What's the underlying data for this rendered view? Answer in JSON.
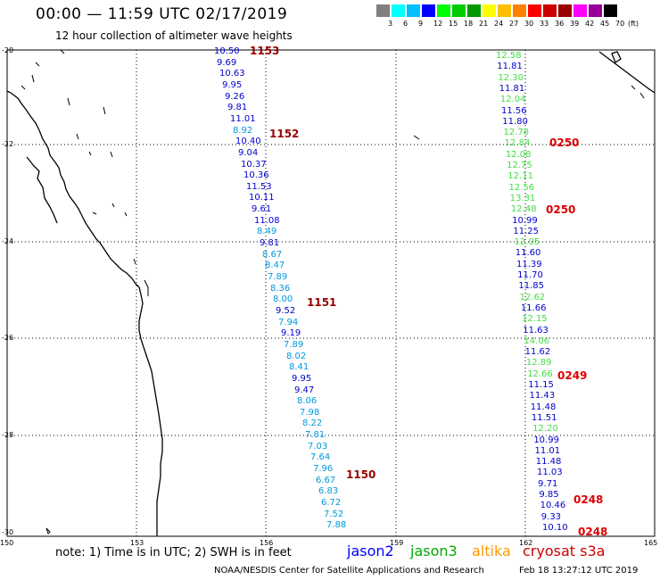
{
  "header": {
    "title": "00:00 — 11:59 UTC 02/17/2019",
    "subtitle": "12 hour collection of altimeter wave heights"
  },
  "colorbar": {
    "unit": "(ft)",
    "labels": [
      "3",
      "6",
      "9",
      "12",
      "15",
      "18",
      "21",
      "24",
      "27",
      "30",
      "33",
      "36",
      "39",
      "42",
      "45",
      "70"
    ],
    "colors": [
      "#808080",
      "#00ffff",
      "#00bfff",
      "#0000ff",
      "#00ff00",
      "#00cc00",
      "#009900",
      "#ffff00",
      "#ffbf00",
      "#ff8000",
      "#ff0000",
      "#cc0000",
      "#990000",
      "#ff00ff",
      "#990099",
      "#000000"
    ]
  },
  "axes": {
    "lat_labels": [
      "-20",
      "-22",
      "-24",
      "-26",
      "-28",
      "-30"
    ],
    "lon_labels": [
      "150",
      "153",
      "156",
      "159",
      "162",
      "165"
    ]
  },
  "sat_colors": {
    "jason2": "#0000ff",
    "jason3": "#00aa00",
    "altika": "#ff9900",
    "cryosat": "#cc0000"
  },
  "track1": [
    {
      "v": "10.50",
      "c": "#0000cc"
    },
    {
      "v": "9.69",
      "c": "#0000cc"
    },
    {
      "v": "10.63",
      "c": "#0000cc"
    },
    {
      "v": "9.95",
      "c": "#0000cc"
    },
    {
      "v": "9.26",
      "c": "#0000cc"
    },
    {
      "v": "9.81",
      "c": "#0000cc"
    },
    {
      "v": "11.01",
      "c": "#0000cc"
    },
    {
      "v": "8.92",
      "c": "#0099dd"
    },
    {
      "v": "10.40",
      "c": "#0000cc"
    },
    {
      "v": "9.04",
      "c": "#0000cc"
    },
    {
      "v": "10.37",
      "c": "#0000cc"
    },
    {
      "v": "10.36",
      "c": "#0000cc"
    },
    {
      "v": "11.53",
      "c": "#0000cc"
    },
    {
      "v": "10.11",
      "c": "#0000cc"
    },
    {
      "v": "9.61",
      "c": "#0000cc"
    },
    {
      "v": "11.08",
      "c": "#0000cc"
    },
    {
      "v": "8.49",
      "c": "#0099dd"
    },
    {
      "v": "9.81",
      "c": "#0000cc"
    },
    {
      "v": "8.67",
      "c": "#0099dd"
    },
    {
      "v": "8.47",
      "c": "#0099dd"
    },
    {
      "v": "7.89",
      "c": "#0099dd"
    },
    {
      "v": "8.36",
      "c": "#0099dd"
    },
    {
      "v": "8.00",
      "c": "#0099dd"
    },
    {
      "v": "9.52",
      "c": "#0000cc"
    },
    {
      "v": "7.94",
      "c": "#0099dd"
    },
    {
      "v": "9.19",
      "c": "#0000cc"
    },
    {
      "v": "7.89",
      "c": "#0099dd"
    },
    {
      "v": "8.02",
      "c": "#0099dd"
    },
    {
      "v": "8.41",
      "c": "#0099dd"
    },
    {
      "v": "9.95",
      "c": "#0000cc"
    },
    {
      "v": "9.47",
      "c": "#0000cc"
    },
    {
      "v": "8.06",
      "c": "#0099dd"
    },
    {
      "v": "7.98",
      "c": "#0099dd"
    },
    {
      "v": "8.22",
      "c": "#0099dd"
    },
    {
      "v": "7.81",
      "c": "#0099dd"
    },
    {
      "v": "7.03",
      "c": "#0099dd"
    },
    {
      "v": "7.64",
      "c": "#0099dd"
    },
    {
      "v": "7.96",
      "c": "#0099dd"
    },
    {
      "v": "6.67",
      "c": "#0099dd"
    },
    {
      "v": "6.83",
      "c": "#0099dd"
    },
    {
      "v": "6.72",
      "c": "#0099dd"
    },
    {
      "v": "7.52",
      "c": "#0099dd"
    },
    {
      "v": "7.88",
      "c": "#0099dd"
    }
  ],
  "track2": [
    {
      "v": "12.58",
      "c": "#44dd44"
    },
    {
      "v": "11.81",
      "c": "#0000cc"
    },
    {
      "v": "12.30",
      "c": "#44dd44"
    },
    {
      "v": "11.81",
      "c": "#0000cc"
    },
    {
      "v": "12.04",
      "c": "#44dd44"
    },
    {
      "v": "11.56",
      "c": "#0000cc"
    },
    {
      "v": "11.80",
      "c": "#0000cc"
    },
    {
      "v": "12.78",
      "c": "#44dd44"
    },
    {
      "v": "12.84",
      "c": "#44dd44"
    },
    {
      "v": "12.08",
      "c": "#44dd44"
    },
    {
      "v": "12.75",
      "c": "#44dd44"
    },
    {
      "v": "12.11",
      "c": "#44dd44"
    },
    {
      "v": "12.56",
      "c": "#44dd44"
    },
    {
      "v": "13.31",
      "c": "#44dd44"
    },
    {
      "v": "12.48",
      "c": "#44dd44"
    },
    {
      "v": "10.99",
      "c": "#0000cc"
    },
    {
      "v": "11.25",
      "c": "#0000cc"
    },
    {
      "v": "12.05",
      "c": "#44dd44"
    },
    {
      "v": "11.60",
      "c": "#0000cc"
    },
    {
      "v": "11.39",
      "c": "#0000cc"
    },
    {
      "v": "11.70",
      "c": "#0000cc"
    },
    {
      "v": "11.85",
      "c": "#0000cc"
    },
    {
      "v": "12.62",
      "c": "#44dd44"
    },
    {
      "v": "11.66",
      "c": "#0000cc"
    },
    {
      "v": "12.15",
      "c": "#44dd44"
    },
    {
      "v": "11.63",
      "c": "#0000cc"
    },
    {
      "v": "14.06",
      "c": "#44dd44"
    },
    {
      "v": "11.62",
      "c": "#0000cc"
    },
    {
      "v": "12.89",
      "c": "#44dd44"
    },
    {
      "v": "12.66",
      "c": "#44dd44"
    },
    {
      "v": "11.15",
      "c": "#0000cc"
    },
    {
      "v": "11.43",
      "c": "#0000cc"
    },
    {
      "v": "11.48",
      "c": "#0000cc"
    },
    {
      "v": "11.51",
      "c": "#0000cc"
    },
    {
      "v": "12.20",
      "c": "#44dd44"
    },
    {
      "v": "10.99",
      "c": "#0000cc"
    },
    {
      "v": "11.01",
      "c": "#0000cc"
    },
    {
      "v": "11.48",
      "c": "#0000cc"
    },
    {
      "v": "11.03",
      "c": "#0000cc"
    },
    {
      "v": "9.71",
      "c": "#0000cc"
    },
    {
      "v": "9.85",
      "c": "#0000cc"
    },
    {
      "v": "10.46",
      "c": "#0000cc"
    },
    {
      "v": "9.33",
      "c": "#0000cc"
    },
    {
      "v": "10.10",
      "c": "#0000cc"
    }
  ],
  "passes": [
    {
      "t": "1153",
      "c": "#990000"
    },
    {
      "t": "1152",
      "c": "#990000"
    },
    {
      "t": "1151",
      "c": "#990000"
    },
    {
      "t": "1150",
      "c": "#990000"
    },
    {
      "t": "0250",
      "c": "#dd0000"
    },
    {
      "t": "0250",
      "c": "#dd0000"
    },
    {
      "t": "0249",
      "c": "#dd0000"
    },
    {
      "t": "0248",
      "c": "#dd0000"
    },
    {
      "t": "0248",
      "c": "#dd0000"
    }
  ],
  "footer": {
    "note": "note:  1) Time is in UTC;  2) SWH is in feet",
    "sat_jason2": "jason2",
    "sat_jason3": "jason3",
    "sat_altika": "altika",
    "sat_cryosat": "cryosat s3a",
    "credit": "NOAA/NESDIS Center for Satellite Applications and Research",
    "generated": "Feb 18 13:27:12 UTC 2019"
  }
}
